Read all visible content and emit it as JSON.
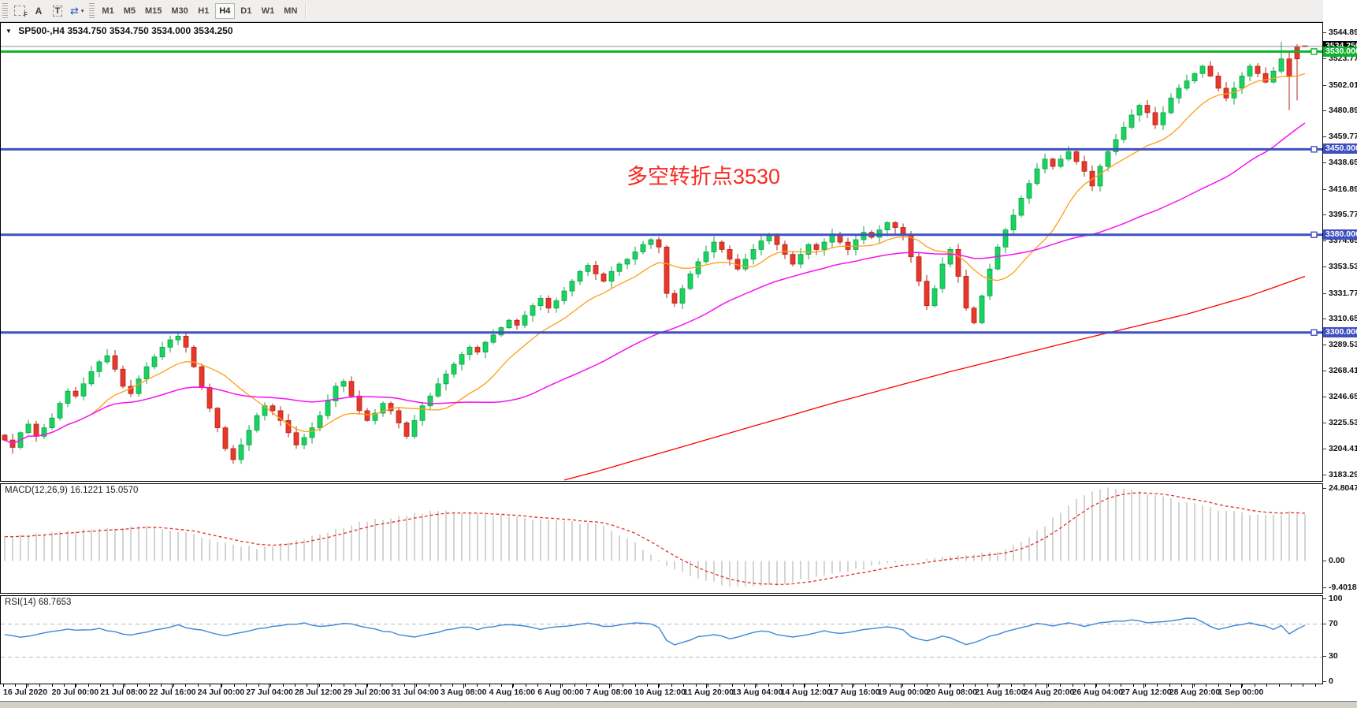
{
  "toolbar": {
    "icon_f_label": "F",
    "icon_a_label": "A",
    "icon_t_label": "T",
    "icon_arrows_glyph": "⇄",
    "caret_glyph": "▾",
    "timeframes": [
      "M1",
      "M5",
      "M15",
      "M30",
      "H1",
      "H4",
      "D1",
      "W1",
      "MN"
    ],
    "selected": "H4"
  },
  "main": {
    "collapse_glyph": "▼",
    "symbol_period": "SP500-,H4",
    "ohlc": "3534.750 3534.750 3534.000 3534.250",
    "annotation": "多空转折点3530"
  },
  "macd": {
    "label": "MACD(12,26,9) 16.1221 15.0570"
  },
  "rsi": {
    "label": "RSI(14) 68.7653"
  },
  "colors": {
    "bull": "#19d25f",
    "bull_border": "#0da648",
    "bear": "#e6392c",
    "bear_border": "#b52217",
    "ma_fast": "#ff9d17",
    "ma_mid": "#f513f1",
    "ma_slow": "#ff0000",
    "macd_hist": "#c9c9c9",
    "macd_signal": "#e03030",
    "rsi_line": "#3d87d9",
    "dashed_level": "#b8b8b8",
    "level_green": "#0db32c",
    "level_blue": "#3f51c1",
    "current_line": "#8f8f8f",
    "current_box_bg": "#000000",
    "annotation": "#f92a23"
  },
  "chart_data": [
    {
      "type": "candlestick",
      "title": "SP500-,H4",
      "ylim": [
        3178.5,
        3553.5
      ],
      "y_ticks": [
        "3544.890",
        "3523.770",
        "3502.010",
        "3480.890",
        "3459.770",
        "3438.650",
        "3416.890",
        "3395.770",
        "3374.650",
        "3353.530",
        "3331.770",
        "3310.650",
        "3289.530",
        "3268.410",
        "3246.650",
        "3225.530",
        "3204.410",
        "3183.290"
      ],
      "x_labels": [
        "16 Jul 2020",
        "20 Jul 00:00",
        "21 Jul 08:00",
        "22 Jul 16:00",
        "24 Jul 00:00",
        "27 Jul 04:00",
        "28 Jul 12:00",
        "29 Jul 20:00",
        "31 Jul 04:00",
        "3 Aug 08:00",
        "4 Aug 16:00",
        "6 Aug 00:00",
        "7 Aug 08:00",
        "10 Aug 12:00",
        "11 Aug 20:00",
        "13 Aug 04:00",
        "14 Aug 12:00",
        "17 Aug 16:00",
        "19 Aug 00:00",
        "20 Aug 08:00",
        "21 Aug 16:00",
        "24 Aug 20:00",
        "26 Aug 04:00",
        "27 Aug 12:00",
        "28 Aug 20:00",
        "1 Sep 00:00"
      ],
      "closes": [
        3212,
        3206,
        3218,
        3225,
        3215,
        3222,
        3230,
        3242,
        3252,
        3248,
        3258,
        3268,
        3276,
        3281,
        3270,
        3256,
        3250,
        3262,
        3272,
        3280,
        3288,
        3294,
        3297,
        3288,
        3272,
        3255,
        3238,
        3222,
        3205,
        3196,
        3208,
        3220,
        3232,
        3240,
        3236,
        3228,
        3218,
        3208,
        3214,
        3222,
        3232,
        3244,
        3256,
        3260,
        3248,
        3236,
        3228,
        3234,
        3242,
        3236,
        3226,
        3215,
        3228,
        3240,
        3248,
        3258,
        3266,
        3274,
        3282,
        3288,
        3284,
        3292,
        3298,
        3304,
        3310,
        3306,
        3314,
        3322,
        3328,
        3320,
        3326,
        3334,
        3342,
        3350,
        3355,
        3348,
        3342,
        3350,
        3356,
        3360,
        3366,
        3372,
        3376,
        3370,
        3332,
        3324,
        3336,
        3348,
        3358,
        3366,
        3374,
        3368,
        3360,
        3352,
        3360,
        3368,
        3375,
        3380,
        3372,
        3364,
        3356,
        3364,
        3372,
        3368,
        3374,
        3380,
        3374,
        3368,
        3376,
        3382,
        3378,
        3384,
        3390,
        3386,
        3380,
        3362,
        3342,
        3322,
        3336,
        3356,
        3368,
        3346,
        3320,
        3308,
        3330,
        3352,
        3370,
        3384,
        3396,
        3410,
        3422,
        3434,
        3442,
        3436,
        3442,
        3448,
        3440,
        3432,
        3420,
        3436,
        3448,
        3458,
        3468,
        3478,
        3486,
        3480,
        3470,
        3480,
        3492,
        3500,
        3506,
        3512,
        3518,
        3510,
        3500,
        3492,
        3500,
        3510,
        3518,
        3512,
        3505,
        3514,
        3524,
        3510,
        3524,
        3534.25
      ],
      "ohlc_overrides": {
        "162": [
          3514,
          3538,
          3512,
          3524
        ],
        "163": [
          3524,
          3530,
          3482,
          3510
        ],
        "164": [
          3534,
          3536,
          3490,
          3524
        ],
        "165": [
          3534.75,
          3534.75,
          3534.0,
          3534.25
        ]
      },
      "ma_fast_period": 12,
      "ma_mid_period": 40,
      "ma_slow_waypoints": [
        [
          62,
          3164
        ],
        [
          75,
          3186
        ],
        [
          90,
          3214
        ],
        [
          105,
          3242
        ],
        [
          120,
          3268
        ],
        [
          135,
          3292
        ],
        [
          150,
          3315
        ],
        [
          158,
          3330
        ],
        [
          165,
          3346
        ]
      ],
      "levels": [
        {
          "label": "3530.000",
          "price": 3530,
          "color_key": "level_green",
          "width": 3
        },
        {
          "label": "3450.000",
          "price": 3450,
          "color_key": "level_blue",
          "width": 3
        },
        {
          "label": "3380.000",
          "price": 3380,
          "color_key": "level_blue",
          "width": 3
        },
        {
          "label": "3300.000",
          "price": 3300,
          "color_key": "level_blue",
          "width": 3
        }
      ],
      "current_price": {
        "label": "3534.250",
        "price": 3534.25
      }
    },
    {
      "type": "bar",
      "name": "MACD",
      "label": "MACD(12,26,9) 16.1221 15.0570",
      "values_text": [
        "16.1221",
        "15.0570"
      ],
      "ylim": [
        -10.9,
        26.3
      ],
      "y_ticks": [
        {
          "label": "24.8047",
          "value": 24.8047
        },
        {
          "label": "0.00",
          "value": 0
        },
        {
          "label": "-9.4018",
          "value": -9.4018
        }
      ],
      "waypoints": [
        [
          0,
          8
        ],
        [
          6,
          9.5
        ],
        [
          12,
          11
        ],
        [
          18,
          12
        ],
        [
          24,
          9
        ],
        [
          28,
          6
        ],
        [
          32,
          4.5
        ],
        [
          36,
          6
        ],
        [
          40,
          9
        ],
        [
          45,
          13
        ],
        [
          50,
          15.5
        ],
        [
          55,
          17
        ],
        [
          60,
          16.5
        ],
        [
          66,
          14.5
        ],
        [
          72,
          13.5
        ],
        [
          76,
          12
        ],
        [
          80,
          6
        ],
        [
          84,
          -2
        ],
        [
          88,
          -6
        ],
        [
          92,
          -8.5
        ],
        [
          95,
          -9.2
        ],
        [
          98,
          -8
        ],
        [
          102,
          -6
        ],
        [
          106,
          -4
        ],
        [
          110,
          -2
        ],
        [
          114,
          -0.5
        ],
        [
          118,
          1
        ],
        [
          122,
          2
        ],
        [
          126,
          3.5
        ],
        [
          128,
          5
        ],
        [
          130,
          8
        ],
        [
          132,
          12
        ],
        [
          134,
          17
        ],
        [
          136,
          21
        ],
        [
          138,
          23.5
        ],
        [
          140,
          24.8
        ],
        [
          143,
          24.2
        ],
        [
          146,
          22.5
        ],
        [
          150,
          20
        ],
        [
          154,
          17.5
        ],
        [
          158,
          16
        ],
        [
          161,
          15.5
        ],
        [
          163,
          16.5
        ],
        [
          165,
          16.1
        ]
      ],
      "signal_ema_k": 0.25
    },
    {
      "type": "line",
      "name": "RSI",
      "label": "RSI(14) 68.7653",
      "current": 68.7653,
      "ylim": [
        -2,
        104
      ],
      "y_ticks": [
        {
          "label": "100",
          "value": 100
        },
        {
          "label": "70",
          "value": 70,
          "dashed": true
        },
        {
          "label": "30",
          "value": 30,
          "dashed": true
        },
        {
          "label": "0",
          "value": 0
        }
      ],
      "waypoints": [
        [
          0,
          58
        ],
        [
          2,
          54
        ],
        [
          4,
          58
        ],
        [
          6,
          61
        ],
        [
          8,
          64
        ],
        [
          10,
          63
        ],
        [
          12,
          65
        ],
        [
          14,
          60
        ],
        [
          16,
          56
        ],
        [
          18,
          60
        ],
        [
          20,
          65
        ],
        [
          22,
          69
        ],
        [
          24,
          64
        ],
        [
          26,
          60
        ],
        [
          28,
          56
        ],
        [
          30,
          60
        ],
        [
          33,
          65
        ],
        [
          36,
          70
        ],
        [
          38,
          71
        ],
        [
          40,
          67
        ],
        [
          42,
          69
        ],
        [
          44,
          71
        ],
        [
          46,
          66
        ],
        [
          48,
          62
        ],
        [
          50,
          58
        ],
        [
          52,
          54
        ],
        [
          54,
          58
        ],
        [
          56,
          63
        ],
        [
          58,
          67
        ],
        [
          60,
          64
        ],
        [
          62,
          67
        ],
        [
          64,
          70
        ],
        [
          66,
          68
        ],
        [
          68,
          64
        ],
        [
          70,
          66
        ],
        [
          72,
          69
        ],
        [
          74,
          71
        ],
        [
          76,
          67
        ],
        [
          78,
          69
        ],
        [
          80,
          72
        ],
        [
          82,
          70
        ],
        [
          83,
          66
        ],
        [
          84,
          50
        ],
        [
          85,
          45
        ],
        [
          86,
          48
        ],
        [
          88,
          54
        ],
        [
          90,
          58
        ],
        [
          92,
          53
        ],
        [
          94,
          57
        ],
        [
          96,
          62
        ],
        [
          98,
          58
        ],
        [
          100,
          54
        ],
        [
          102,
          58
        ],
        [
          104,
          62
        ],
        [
          106,
          59
        ],
        [
          108,
          62
        ],
        [
          110,
          65
        ],
        [
          112,
          67
        ],
        [
          114,
          63
        ],
        [
          115,
          55
        ],
        [
          117,
          49
        ],
        [
          119,
          56
        ],
        [
          121,
          50
        ],
        [
          122,
          46
        ],
        [
          123,
          48
        ],
        [
          125,
          55
        ],
        [
          127,
          61
        ],
        [
          129,
          66
        ],
        [
          131,
          70
        ],
        [
          133,
          68
        ],
        [
          135,
          71
        ],
        [
          137,
          68
        ],
        [
          139,
          71
        ],
        [
          141,
          73
        ],
        [
          143,
          75
        ],
        [
          145,
          71
        ],
        [
          147,
          73
        ],
        [
          149,
          76
        ],
        [
          151,
          77
        ],
        [
          152,
          72
        ],
        [
          153,
          67
        ],
        [
          154,
          63
        ],
        [
          156,
          68
        ],
        [
          158,
          72
        ],
        [
          160,
          67
        ],
        [
          161,
          63
        ],
        [
          162,
          68
        ],
        [
          163,
          58
        ],
        [
          164,
          63
        ],
        [
          165,
          68.8
        ]
      ]
    }
  ]
}
